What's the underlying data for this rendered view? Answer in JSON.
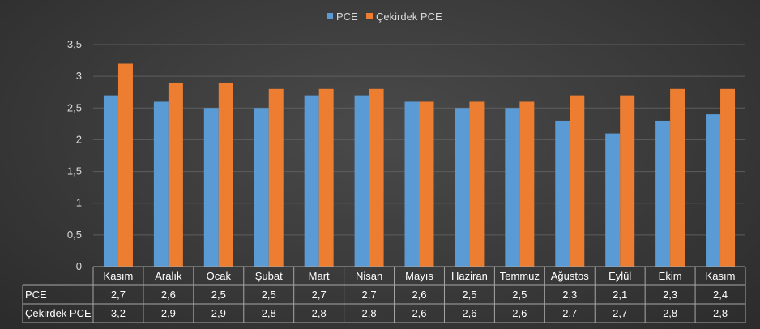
{
  "chart_data": {
    "type": "bar",
    "categories": [
      "Kasım",
      "Aralık",
      "Ocak",
      "Şubat",
      "Mart",
      "Nisan",
      "Mayıs",
      "Haziran",
      "Temmuz",
      "Ağustos",
      "Eylül",
      "Ekim",
      "Kasım"
    ],
    "series": [
      {
        "name": "PCE",
        "values": [
          2.7,
          2.6,
          2.5,
          2.5,
          2.7,
          2.7,
          2.6,
          2.5,
          2.5,
          2.3,
          2.1,
          2.3,
          2.4
        ],
        "color": "#5b9bd5"
      },
      {
        "name": "Çekirdek PCE",
        "values": [
          3.2,
          2.9,
          2.9,
          2.8,
          2.8,
          2.8,
          2.6,
          2.6,
          2.6,
          2.7,
          2.7,
          2.8,
          2.8
        ],
        "color": "#ed7d31"
      }
    ],
    "ylim": [
      0,
      3.5
    ],
    "yticks": [
      "0",
      "0,5",
      "1",
      "1,5",
      "2",
      "2,5",
      "3",
      "3,5"
    ],
    "value_labels": {
      "PCE": [
        "2,7",
        "2,6",
        "2,5",
        "2,5",
        "2,7",
        "2,7",
        "2,6",
        "2,5",
        "2,5",
        "2,3",
        "2,1",
        "2,3",
        "2,4"
      ],
      "Çekirdek PCE": [
        "3,2",
        "2,9",
        "2,9",
        "2,8",
        "2,8",
        "2,8",
        "2,6",
        "2,6",
        "2,6",
        "2,7",
        "2,7",
        "2,8",
        "2,8"
      ]
    },
    "legend": "top-center",
    "grid": true,
    "data_table": true
  }
}
